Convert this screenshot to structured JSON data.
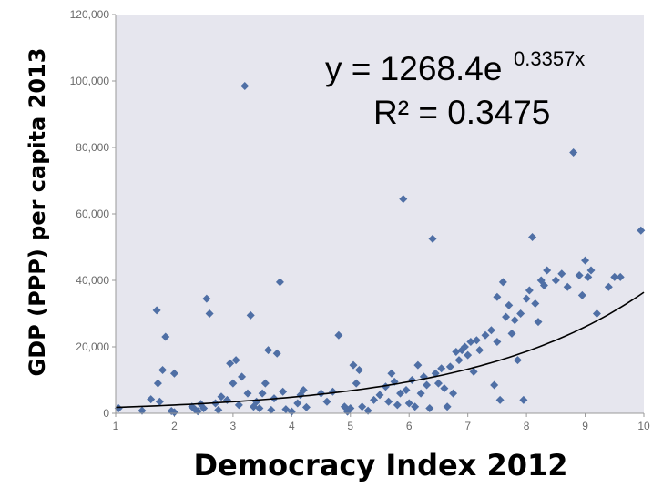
{
  "chart_data": {
    "type": "scatter",
    "xlabel": "Democracy Index 2012",
    "ylabel": "GDP (PPP) per capita 2013",
    "xlim": [
      1,
      10
    ],
    "ylim": [
      0,
      120000
    ],
    "x_ticks": [
      "1",
      "2",
      "3",
      "4",
      "5",
      "6",
      "7",
      "8",
      "9",
      "10"
    ],
    "y_ticks": [
      "0",
      "20,000",
      "40,000",
      "60,000",
      "80,000",
      "100,000",
      "120,000"
    ],
    "grid": false,
    "trendline": {
      "type": "exponential",
      "a": 1268.4,
      "b": 0.3357,
      "equation_main": "y = 1268.4e",
      "equation_exp": "0.3357x",
      "r_squared": "R² = 0.3475"
    },
    "colors": {
      "marker": "#4f6fa5",
      "plot_bg": "#e6e6ee",
      "trend": "#000000"
    },
    "points": [
      [
        1.05,
        1500
      ],
      [
        1.45,
        800
      ],
      [
        1.6,
        4200
      ],
      [
        1.7,
        31000
      ],
      [
        1.75,
        3500
      ],
      [
        1.72,
        9000
      ],
      [
        1.85,
        23000
      ],
      [
        1.8,
        13000
      ],
      [
        1.95,
        700
      ],
      [
        2.0,
        12000
      ],
      [
        2.0,
        300
      ],
      [
        2.3,
        2000
      ],
      [
        2.35,
        1200
      ],
      [
        2.4,
        600
      ],
      [
        2.45,
        2800
      ],
      [
        2.5,
        1500
      ],
      [
        2.55,
        34500
      ],
      [
        2.6,
        30000
      ],
      [
        2.7,
        3000
      ],
      [
        2.75,
        1000
      ],
      [
        2.8,
        5000
      ],
      [
        2.9,
        4000
      ],
      [
        2.95,
        15000
      ],
      [
        3.0,
        9000
      ],
      [
        3.05,
        16000
      ],
      [
        3.1,
        2500
      ],
      [
        3.15,
        11000
      ],
      [
        3.2,
        98500
      ],
      [
        3.25,
        6000
      ],
      [
        3.3,
        29500
      ],
      [
        3.35,
        2000
      ],
      [
        3.4,
        3500
      ],
      [
        3.45,
        1500
      ],
      [
        3.5,
        6000
      ],
      [
        3.55,
        9000
      ],
      [
        3.6,
        19000
      ],
      [
        3.65,
        1000
      ],
      [
        3.7,
        4500
      ],
      [
        3.75,
        18000
      ],
      [
        3.8,
        39500
      ],
      [
        3.85,
        6500
      ],
      [
        3.9,
        1200
      ],
      [
        4.0,
        500
      ],
      [
        4.1,
        3000
      ],
      [
        4.15,
        5500
      ],
      [
        4.2,
        7000
      ],
      [
        4.25,
        1800
      ],
      [
        4.5,
        6000
      ],
      [
        4.6,
        3500
      ],
      [
        4.7,
        6500
      ],
      [
        4.8,
        23500
      ],
      [
        4.9,
        2000
      ],
      [
        4.95,
        500
      ],
      [
        5.0,
        1500
      ],
      [
        5.05,
        14500
      ],
      [
        5.1,
        9000
      ],
      [
        5.15,
        13000
      ],
      [
        5.2,
        2000
      ],
      [
        5.3,
        800
      ],
      [
        5.4,
        4000
      ],
      [
        5.5,
        5500
      ],
      [
        5.6,
        8000
      ],
      [
        5.65,
        3500
      ],
      [
        5.7,
        12000
      ],
      [
        5.75,
        9500
      ],
      [
        5.8,
        2500
      ],
      [
        5.85,
        6000
      ],
      [
        5.9,
        64500
      ],
      [
        5.95,
        7000
      ],
      [
        6.0,
        3000
      ],
      [
        6.05,
        10000
      ],
      [
        6.1,
        2000
      ],
      [
        6.15,
        14500
      ],
      [
        6.2,
        6000
      ],
      [
        6.25,
        11000
      ],
      [
        6.3,
        8500
      ],
      [
        6.35,
        1500
      ],
      [
        6.4,
        52500
      ],
      [
        6.45,
        12000
      ],
      [
        6.5,
        9000
      ],
      [
        6.55,
        13500
      ],
      [
        6.6,
        7500
      ],
      [
        6.65,
        2000
      ],
      [
        6.7,
        14000
      ],
      [
        6.75,
        6000
      ],
      [
        6.8,
        18500
      ],
      [
        6.85,
        16000
      ],
      [
        6.9,
        19000
      ],
      [
        6.95,
        20000
      ],
      [
        7.0,
        17500
      ],
      [
        7.05,
        21500
      ],
      [
        7.1,
        12500
      ],
      [
        7.15,
        22000
      ],
      [
        7.2,
        19000
      ],
      [
        7.3,
        23500
      ],
      [
        7.4,
        25000
      ],
      [
        7.45,
        8500
      ],
      [
        7.5,
        21500
      ],
      [
        7.55,
        4000
      ],
      [
        7.6,
        39500
      ],
      [
        7.65,
        29000
      ],
      [
        7.7,
        32500
      ],
      [
        7.75,
        24000
      ],
      [
        7.8,
        28000
      ],
      [
        7.85,
        16000
      ],
      [
        7.9,
        30000
      ],
      [
        7.95,
        4000
      ],
      [
        8.0,
        34500
      ],
      [
        8.05,
        37000
      ],
      [
        8.1,
        53000
      ],
      [
        8.15,
        33000
      ],
      [
        8.2,
        27500
      ],
      [
        8.25,
        40000
      ],
      [
        8.3,
        38500
      ],
      [
        8.35,
        43000
      ],
      [
        8.5,
        40000
      ],
      [
        8.6,
        42000
      ],
      [
        8.7,
        38000
      ],
      [
        8.8,
        78500
      ],
      [
        8.9,
        41500
      ],
      [
        8.95,
        35500
      ],
      [
        9.0,
        46000
      ],
      [
        9.05,
        41000
      ],
      [
        9.1,
        43000
      ],
      [
        9.2,
        30000
      ],
      [
        9.4,
        38000
      ],
      [
        9.5,
        41000
      ],
      [
        9.6,
        41000
      ],
      [
        9.95,
        55000
      ],
      [
        7.5,
        35000
      ]
    ]
  }
}
